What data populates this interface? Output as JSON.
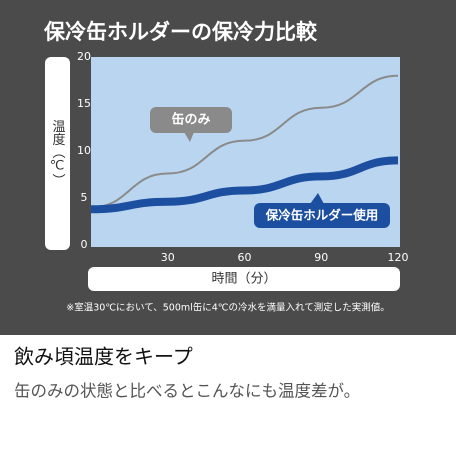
{
  "chart_data": {
    "type": "line",
    "title": "保冷缶ホルダーの保冷力比較",
    "ylabel": "温度（℃）",
    "xlabel": "時間（分）",
    "x": [
      0,
      30,
      60,
      90,
      120
    ],
    "xlim": [
      0,
      120
    ],
    "xticks": [
      30,
      60,
      90,
      120
    ],
    "ylim": [
      0,
      20
    ],
    "yticks": [
      0,
      5,
      10,
      15,
      20
    ],
    "series": [
      {
        "name": "缶のみ",
        "color": "#8a8a8a",
        "values": [
          4,
          7.6,
          11.1,
          14.6,
          18
        ]
      },
      {
        "name": "保冷缶ホルダー使用",
        "color": "#1d4fa0",
        "values": [
          3.8,
          4.6,
          5.8,
          7.3,
          9
        ]
      }
    ],
    "footnote": "※室温30℃において、500ml缶に4℃の冷水を満量入れて測定した実測値。"
  },
  "caption": {
    "heading": "飲み頃温度をキープ",
    "text": "缶のみの状態と比べるとこんなにも温度差が。"
  }
}
